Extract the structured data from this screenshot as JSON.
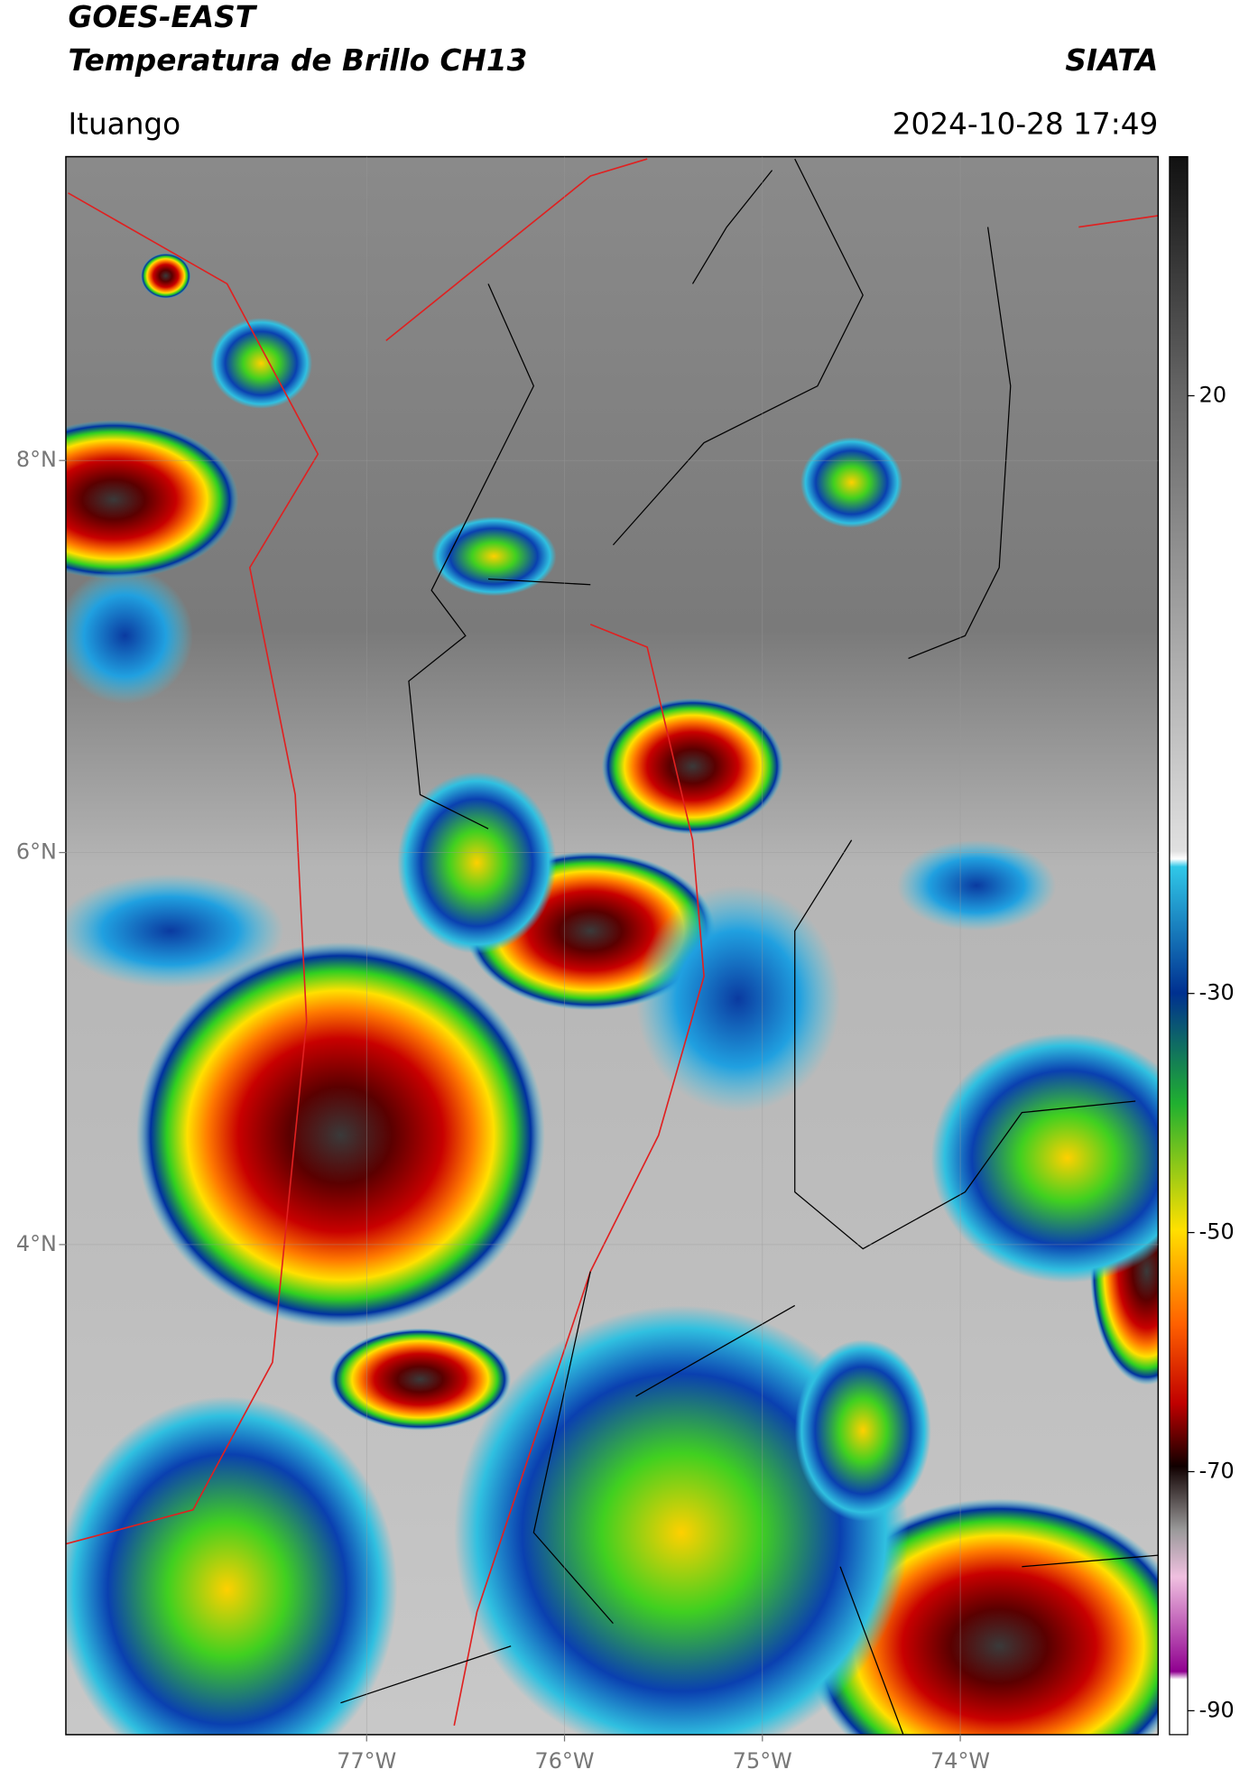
{
  "header": {
    "title": "GOES-EAST",
    "subtitle": "Temperatura de Brillo CH13",
    "source": "SIATA",
    "location": "Ituango",
    "datetime": "2024-10-28 17:49"
  },
  "map": {
    "xlim": [
      -78.52,
      -73.0
    ],
    "ylim": [
      1.5,
      9.55
    ],
    "xticks": [
      {
        "value": -77,
        "label": "77°W"
      },
      {
        "value": -76,
        "label": "76°W"
      },
      {
        "value": -75,
        "label": "75°W"
      },
      {
        "value": -74,
        "label": "74°W"
      }
    ],
    "yticks": [
      {
        "value": 8,
        "label": "8°N"
      },
      {
        "value": 6,
        "label": "6°N"
      },
      {
        "value": 4,
        "label": "4°N"
      }
    ]
  },
  "colorbar": {
    "lim": [
      -92,
      40
    ],
    "ticks": [
      20,
      -30,
      -50,
      -70,
      -90
    ]
  }
}
